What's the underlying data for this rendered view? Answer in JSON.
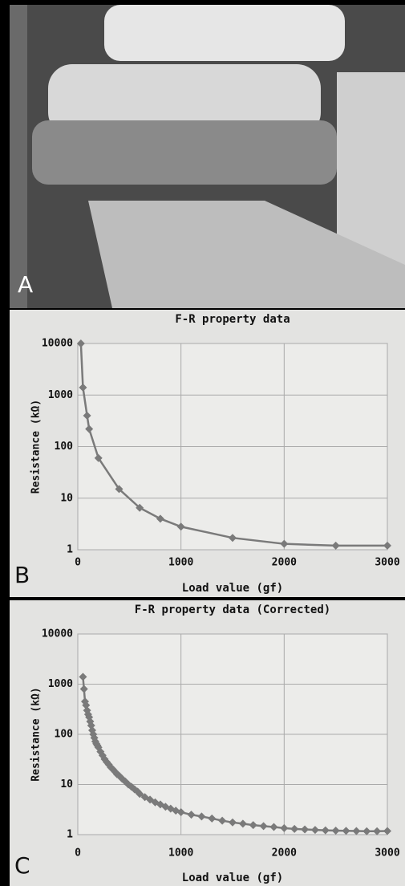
{
  "photo_label": "A",
  "chart_data": [
    {
      "type": "line",
      "panel_label": "B",
      "title": "F-R property data",
      "xlabel": "Load value (gf)",
      "ylabel": "Resistance (kΩ)",
      "x": [
        30,
        50,
        90,
        110,
        200,
        400,
        600,
        800,
        1000,
        1500,
        2000,
        2500,
        3000
      ],
      "series": [
        {
          "color": "#7a7a7a",
          "values": [
            10000,
            1400,
            400,
            220,
            60,
            15,
            6.5,
            4,
            2.8,
            1.7,
            1.3,
            1.2,
            1.2
          ]
        }
      ],
      "xlim": [
        0,
        3000
      ],
      "xticks": [
        0,
        1000,
        2000,
        3000
      ],
      "ylim": [
        1,
        10000
      ],
      "yticks": [
        1,
        10,
        100,
        1000,
        10000
      ],
      "log_y": true,
      "grid": true,
      "markers": true
    },
    {
      "type": "line",
      "panel_label": "C",
      "title": "F-R property data (Corrected)",
      "xlabel": "Load value (gf)",
      "ylabel": "Resistance (kΩ)",
      "x": [
        50,
        60,
        70,
        80,
        90,
        100,
        110,
        120,
        130,
        140,
        150,
        160,
        170,
        180,
        190,
        200,
        220,
        240,
        260,
        280,
        300,
        320,
        340,
        360,
        380,
        400,
        430,
        460,
        490,
        520,
        550,
        580,
        600,
        650,
        700,
        750,
        800,
        850,
        900,
        950,
        1000,
        1100,
        1200,
        1300,
        1400,
        1500,
        1600,
        1700,
        1800,
        1900,
        2000,
        2100,
        2200,
        2300,
        2400,
        2500,
        2600,
        2700,
        2800,
        2900,
        3000
      ],
      "series": [
        {
          "color": "#7a7a7a",
          "values": [
            1400,
            800,
            450,
            380,
            300,
            250,
            220,
            180,
            150,
            120,
            100,
            85,
            72,
            65,
            60,
            55,
            45,
            38,
            32,
            28,
            25,
            22,
            20,
            18,
            16,
            15,
            13,
            11.5,
            10,
            9,
            8,
            7.2,
            6.5,
            5.6,
            5,
            4.4,
            4,
            3.6,
            3.3,
            3,
            2.8,
            2.5,
            2.3,
            2.1,
            1.9,
            1.75,
            1.65,
            1.55,
            1.48,
            1.42,
            1.35,
            1.3,
            1.27,
            1.24,
            1.22,
            1.2,
            1.19,
            1.18,
            1.17,
            1.17,
            1.18
          ]
        }
      ],
      "xlim": [
        0,
        3000
      ],
      "xticks": [
        0,
        1000,
        2000,
        3000
      ],
      "ylim": [
        1,
        10000
      ],
      "yticks": [
        1,
        10,
        100,
        1000,
        10000
      ],
      "log_y": true,
      "grid": true,
      "markers": true
    }
  ]
}
